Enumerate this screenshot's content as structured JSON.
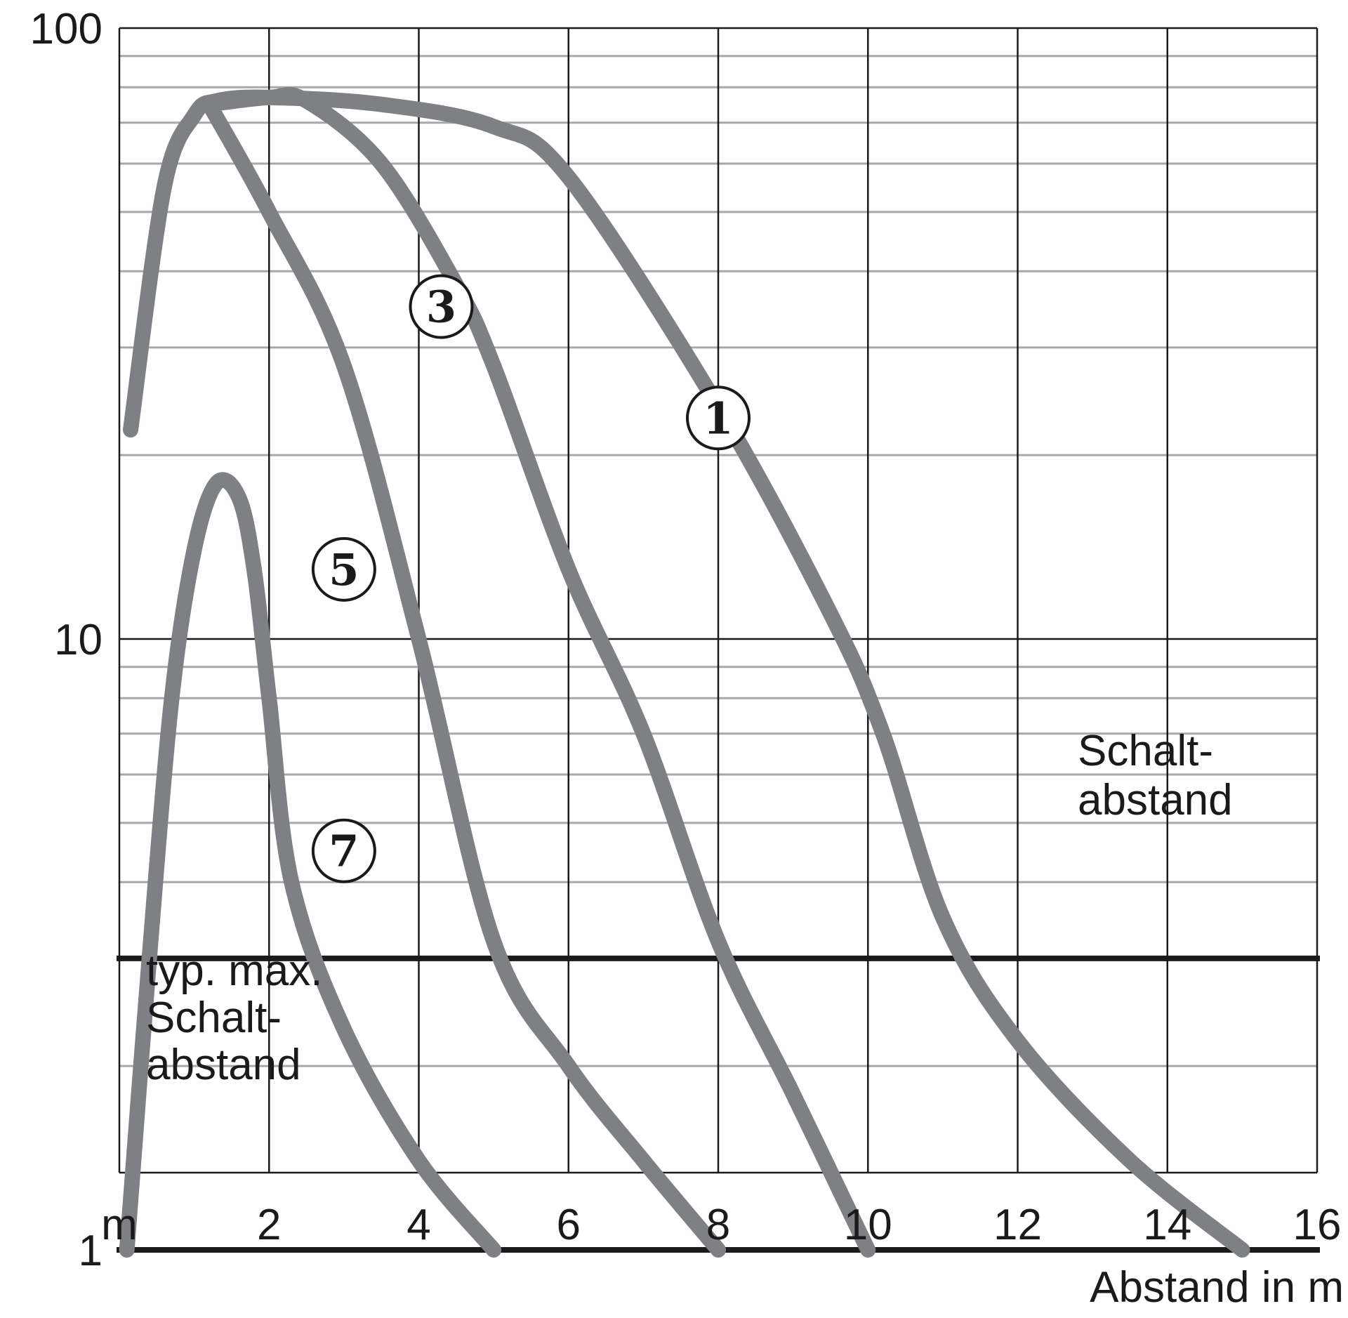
{
  "chart_data": {
    "type": "line",
    "title": "",
    "xlabel": "Abstand in m",
    "x_unit_tick": "m",
    "x_ticks": [
      "2",
      "4",
      "6",
      "8",
      "10",
      "12",
      "14",
      "16"
    ],
    "y_ticks": [
      "1",
      "10",
      "100"
    ],
    "y_scale": "log",
    "xlim": [
      0,
      16
    ],
    "ylim": [
      0.8,
      100
    ],
    "grid": true,
    "annotations": {
      "switching_distance": "Schalt-\nabstand",
      "typ_max_switching_distance": "typ. max.\nSchalt-\nabstand"
    },
    "threshold_lines": [
      3,
      1
    ],
    "series": [
      {
        "name": "①",
        "x": [
          0.15,
          0.6,
          1.0,
          1.3,
          2.0,
          3.5,
          5.0,
          6.0,
          8.0,
          9.5,
          10.2,
          11.0,
          12.0,
          13.5,
          15.0
        ],
        "y": [
          22,
          55,
          72,
          76,
          77,
          75,
          69,
          57,
          24,
          11,
          7,
          3.5,
          2.2,
          1.4,
          1.0
        ]
      },
      {
        "name": "③",
        "x": [
          1.2,
          2.0,
          2.5,
          3.5,
          4.5,
          5.0,
          6.0,
          7.0,
          8.0,
          9.0,
          10.0
        ],
        "y": [
          75,
          77,
          76,
          60,
          38,
          28,
          13,
          7,
          3.2,
          1.8,
          1.0
        ]
      },
      {
        "name": "⑤",
        "x": [
          1.2,
          2.0,
          3.0,
          4.0,
          5.0,
          6.0,
          7.0,
          8.0
        ],
        "y": [
          75,
          50,
          28,
          10,
          3.2,
          2.0,
          1.4,
          1.0
        ]
      },
      {
        "name": "⑦",
        "x": [
          0.1,
          0.4,
          0.7,
          1.0,
          1.3,
          1.6,
          1.8,
          2.0,
          2.3,
          3.0,
          4.0,
          5.0
        ],
        "y": [
          1.0,
          3.0,
          8.0,
          14,
          18,
          17,
          13,
          8,
          4,
          2.3,
          1.4,
          1.0
        ]
      }
    ],
    "colors": {
      "curve": "#7f8083",
      "grid_major": "#1a1a1a",
      "grid_minor": "#a8a8a8",
      "threshold": "#1a1a1a"
    }
  }
}
